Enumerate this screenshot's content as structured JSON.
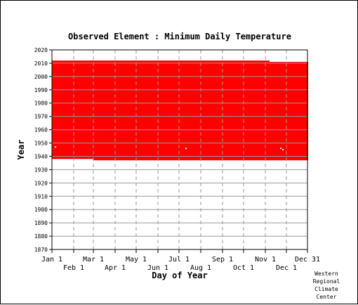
{
  "credit": [
    "Western",
    "Regional",
    "Climate",
    "Center"
  ],
  "chart_data": {
    "type": "area",
    "title": "Observed Element : Minimum Daily Temperature",
    "xlabel": "Day of Year",
    "ylabel": "Year",
    "xlim": [
      1,
      365
    ],
    "ylim": [
      1870,
      2020
    ],
    "y_ticks": [
      1870,
      1880,
      1890,
      1900,
      1910,
      1920,
      1930,
      1940,
      1950,
      1960,
      1970,
      1980,
      1990,
      2000,
      2010,
      2020
    ],
    "x_ticks_upper": [
      {
        "label": "Jan 1",
        "day": 1
      },
      {
        "label": "Mar 1",
        "day": 60
      },
      {
        "label": "May 1",
        "day": 121
      },
      {
        "label": "Jul 1",
        "day": 182
      },
      {
        "label": "Sep 1",
        "day": 244
      },
      {
        "label": "Nov 1",
        "day": 305
      },
      {
        "label": "Dec 31",
        "day": 365
      }
    ],
    "x_ticks_lower": [
      {
        "label": "Feb 1",
        "day": 32
      },
      {
        "label": "Apr 1",
        "day": 91
      },
      {
        "label": "Jun 1",
        "day": 152
      },
      {
        "label": "Aug 1",
        "day": 213
      },
      {
        "label": "Oct 1",
        "day": 274
      },
      {
        "label": "Dec 1",
        "day": 335
      }
    ],
    "grid": true,
    "fill_color": "#ff0000",
    "series": [
      {
        "segments": [
          {
            "day_start": 1,
            "day_end": 59,
            "year_start": 1938,
            "year_end": 2012
          },
          {
            "day_start": 60,
            "day_end": 310,
            "year_start": 1937,
            "year_end": 2012
          },
          {
            "day_start": 311,
            "day_end": 365,
            "year_start": 1937,
            "year_end": 2011
          }
        ],
        "missing": [
          {
            "day": 6,
            "year": 1947
          },
          {
            "day": 192,
            "year": 1946
          },
          {
            "day": 327,
            "year": 1946
          },
          {
            "day": 330,
            "year": 1945
          }
        ]
      }
    ]
  }
}
